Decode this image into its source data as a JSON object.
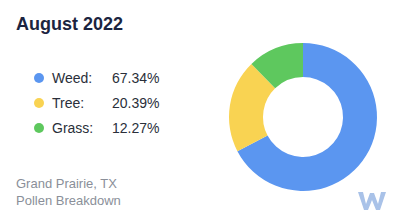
{
  "chart_data": {
    "type": "pie",
    "title": "August 2022",
    "categories": [
      "Weed:",
      "Tree:",
      "Grass:"
    ],
    "values": [
      67.34,
      20.39,
      12.27
    ],
    "value_labels": [
      "67.34%",
      "20.39%",
      "12.27%"
    ],
    "colors": [
      "#5b96f0",
      "#f9d352",
      "#5ec85e"
    ],
    "legend": "left",
    "annotations": [
      "Grand Prairie, TX",
      "Pollen Breakdown"
    ]
  }
}
